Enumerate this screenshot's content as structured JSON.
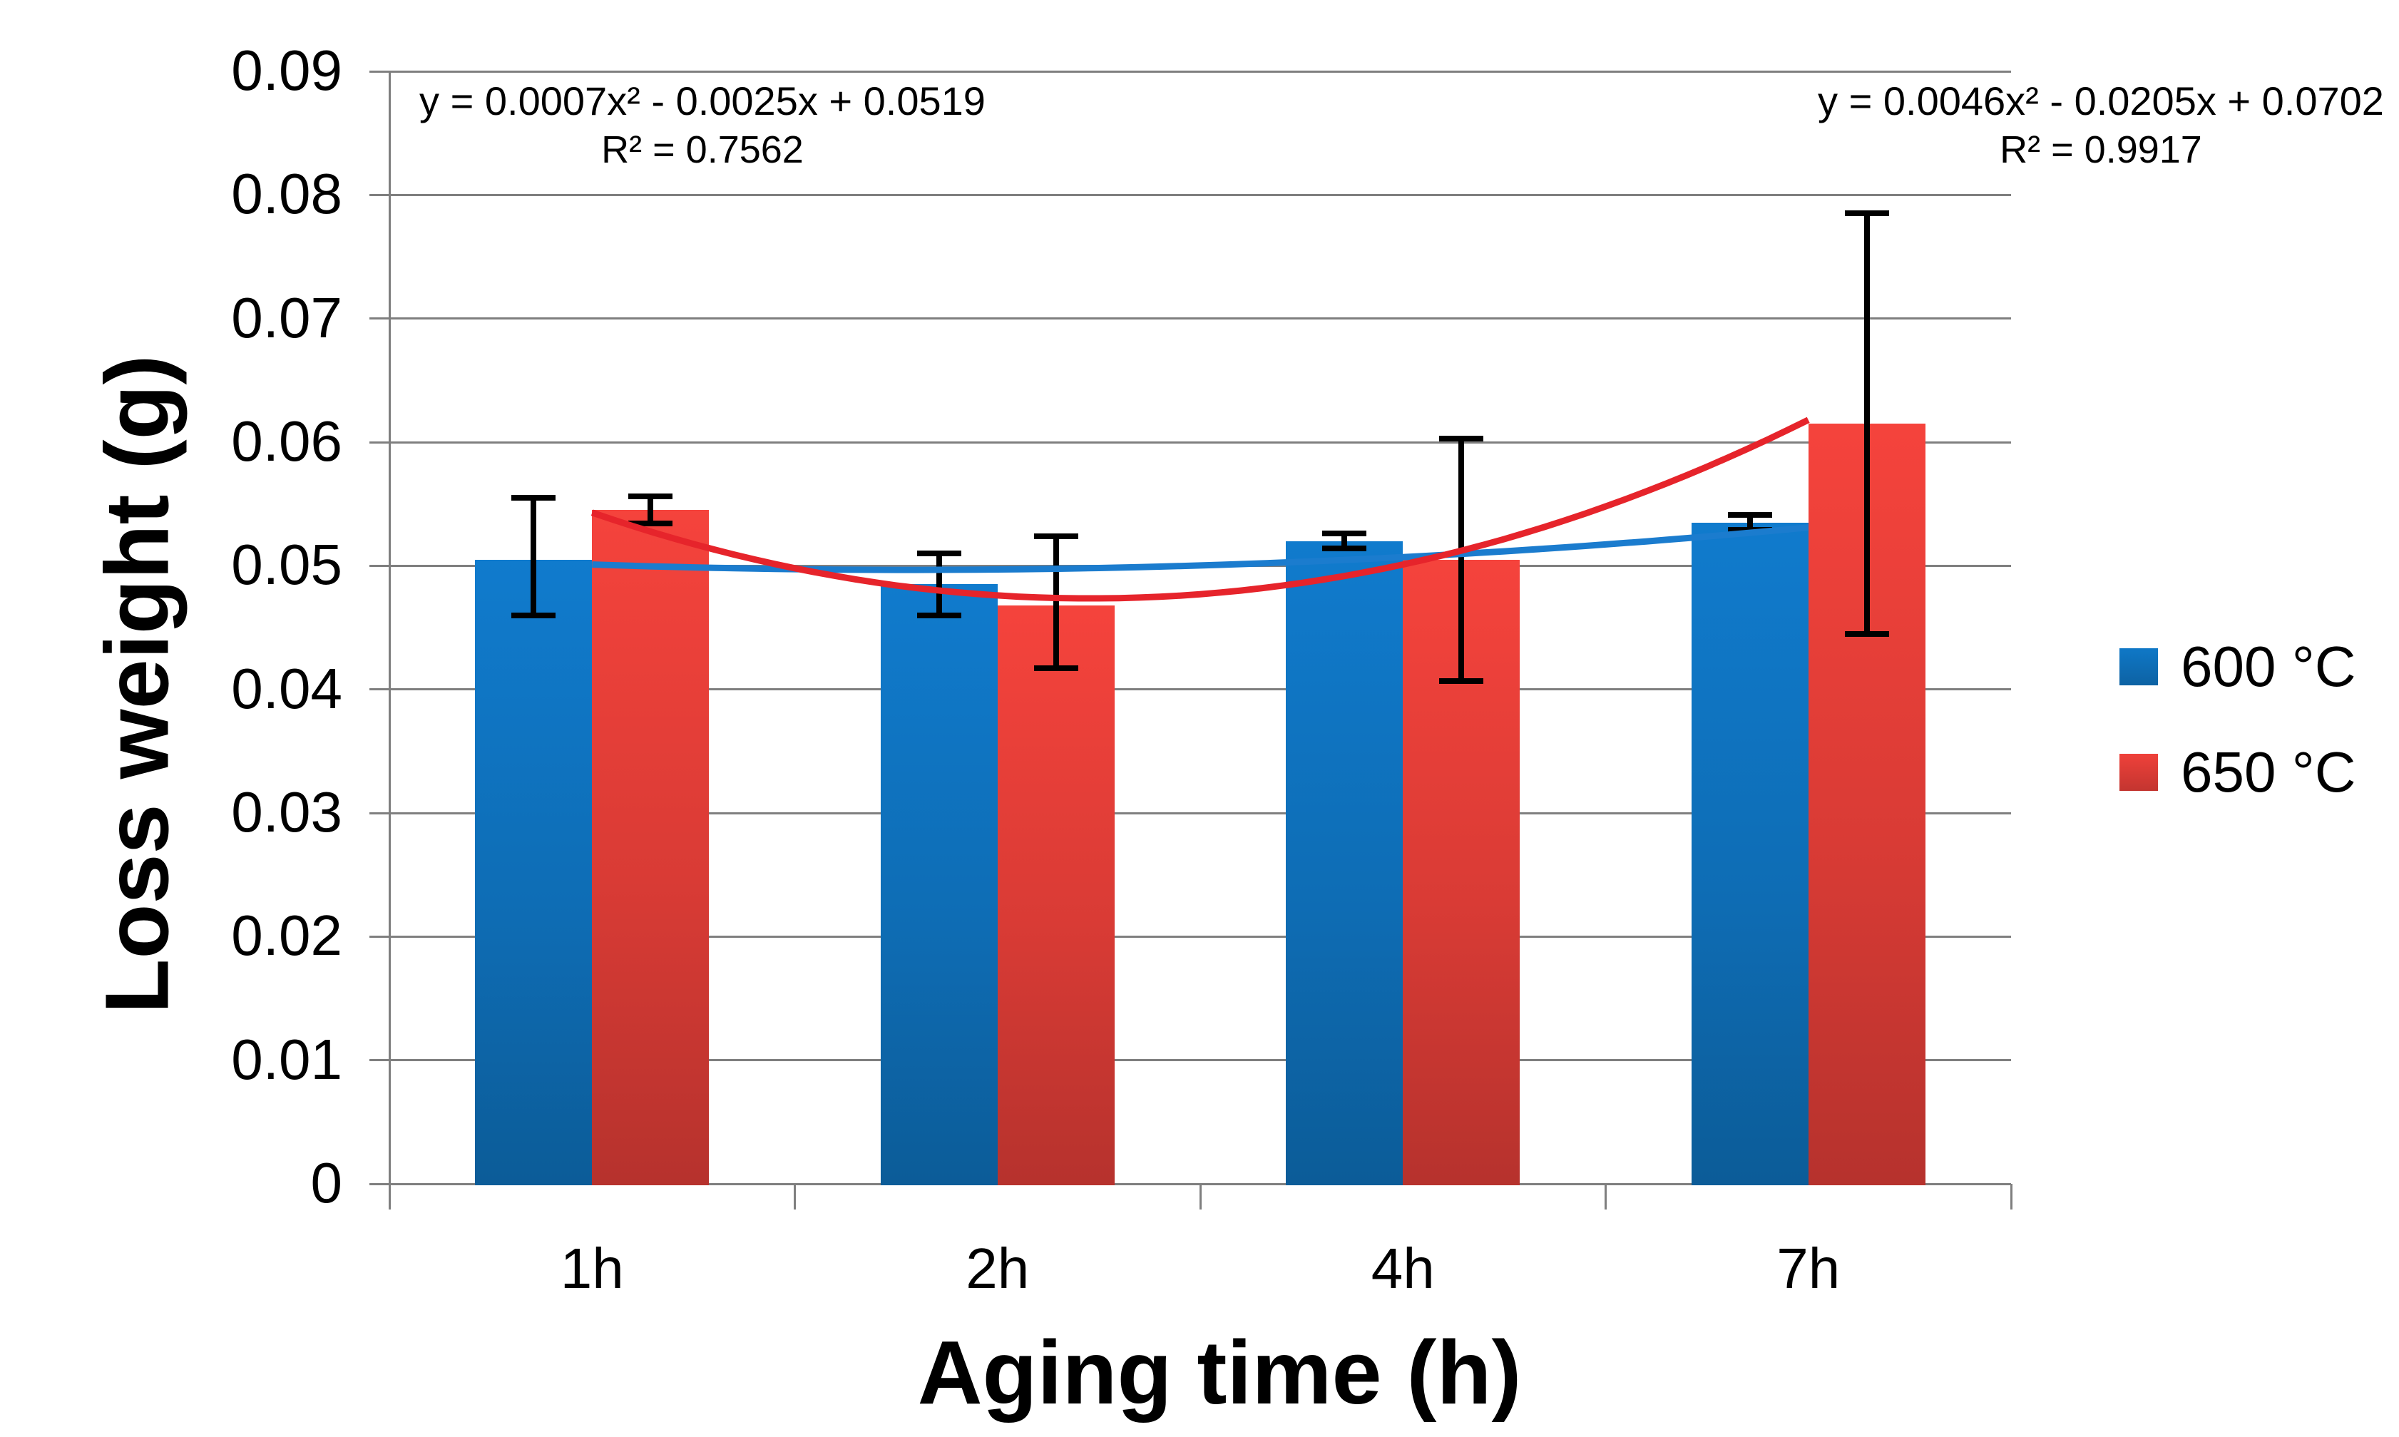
{
  "chart_data": {
    "type": "bar",
    "title": "",
    "xlabel": "Aging time (h)",
    "ylabel": "Loss weight (g)",
    "categories": [
      "1h",
      "2h",
      "4h",
      "7h"
    ],
    "ylim": [
      0,
      0.09
    ],
    "ytick_step": 0.01,
    "ytick_labels": [
      "0",
      "0.01",
      "0.02",
      "0.03",
      "0.04",
      "0.05",
      "0.06",
      "0.07",
      "0.08",
      "0.09"
    ],
    "grid": "horizontal-gridlines",
    "grid_color": "#7F7F7F",
    "axis_color": "#7F7F7F",
    "error_bar_color": "#000000",
    "legend_position": "right",
    "series": [
      {
        "name": "600 °C",
        "color": "#0E6DB5",
        "values": [
          0.0505,
          0.0485,
          0.052,
          0.0535
        ],
        "error_plus": [
          0.005,
          0.0025,
          0.0006,
          0.0006
        ],
        "error_minus": [
          0.0045,
          0.0025,
          0.0006,
          0.0006
        ],
        "trendline": {
          "type": "polynomial-order-2",
          "a": 0.0007,
          "b": -0.0025,
          "c": 0.0519,
          "color": "#1B7CCE",
          "equation": "y = 0.0007x² - 0.0025x + 0.0519",
          "r_squared": "R² = 0.7562"
        }
      },
      {
        "name": "650 °C",
        "color": "#D93B35",
        "values": [
          0.0545,
          0.0468,
          0.0505,
          0.0615
        ],
        "error_plus": [
          0.0011,
          0.0056,
          0.0098,
          0.017
        ],
        "error_minus": [
          0.0011,
          0.0051,
          0.0098,
          0.017
        ],
        "trendline": {
          "type": "polynomial-order-2",
          "a": 0.0046,
          "b": -0.0205,
          "c": 0.0702,
          "color": "#E6242B",
          "equation": "y = 0.0046x² - 0.0205x + 0.0702",
          "r_squared": "R² = 0.9917"
        }
      }
    ]
  }
}
